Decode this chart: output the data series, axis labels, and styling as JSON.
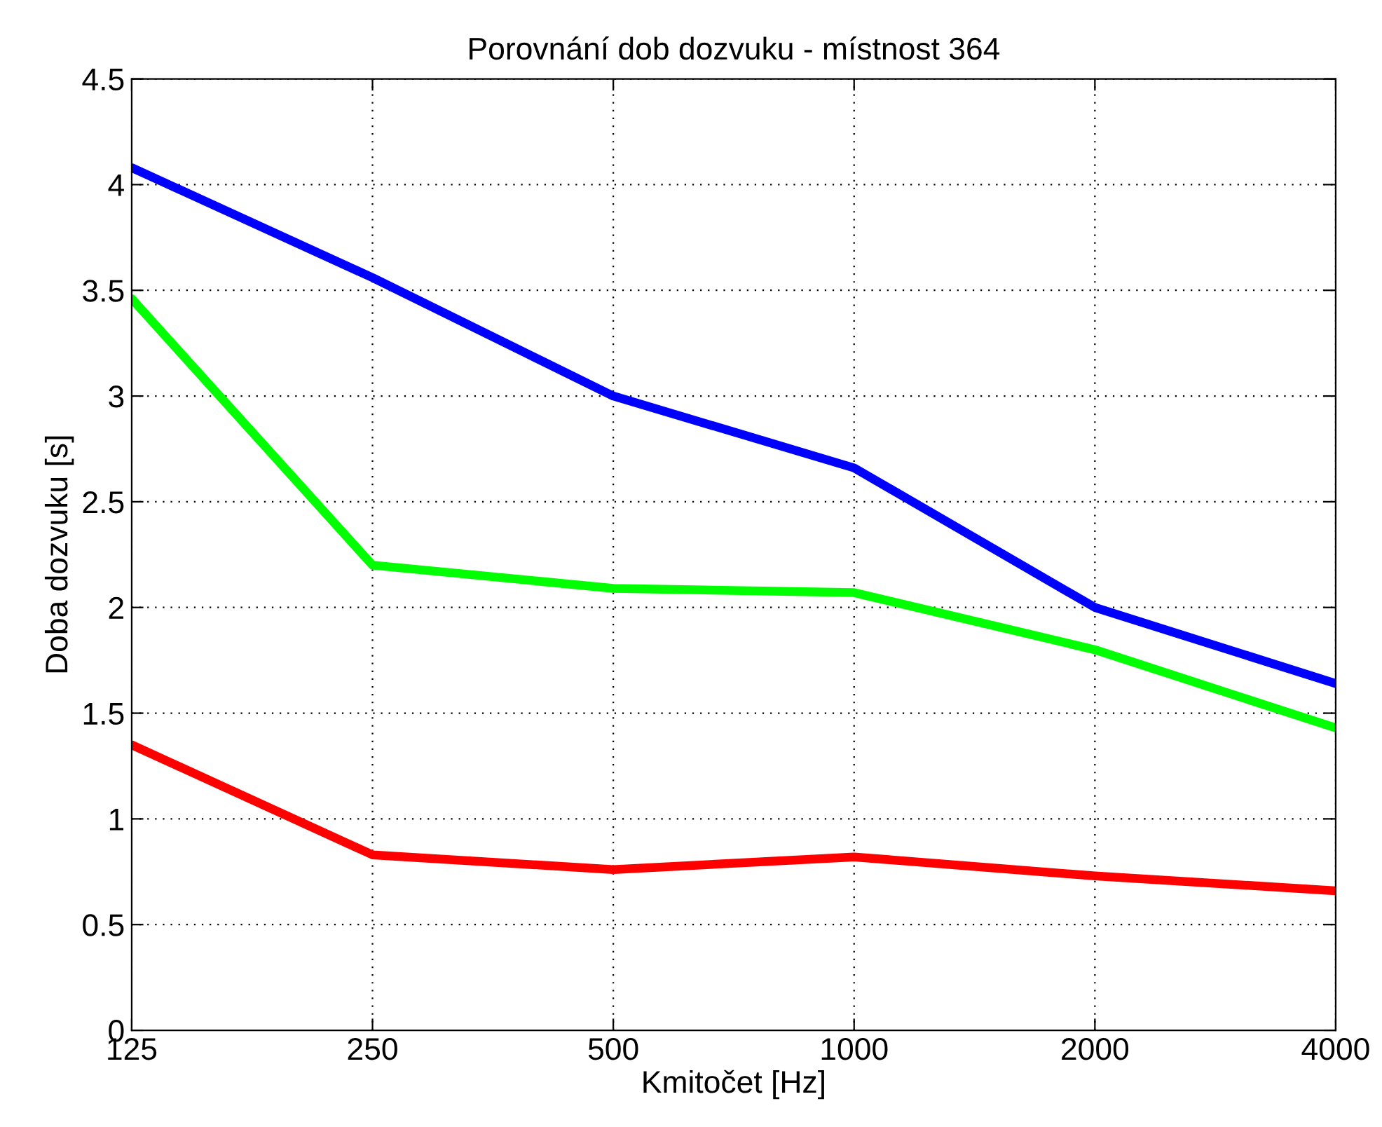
{
  "chart_data": {
    "type": "line",
    "title": "Porovnání dob dozvuku - místnost 364",
    "xlabel": "Kmitočet [Hz]",
    "ylabel": "Doba dozvuku [s]",
    "x": [
      125,
      250,
      500,
      1000,
      2000,
      4000
    ],
    "series": [
      {
        "color": "#0000ff",
        "values": [
          4.08,
          3.56,
          3.0,
          2.66,
          2.0,
          1.64
        ]
      },
      {
        "color": "#00ff00",
        "values": [
          3.46,
          2.2,
          2.09,
          2.07,
          1.8,
          1.43
        ]
      },
      {
        "color": "#ff0000",
        "values": [
          1.35,
          0.83,
          0.76,
          0.82,
          0.73,
          0.66
        ]
      }
    ],
    "log": "x",
    "xlim": [
      125,
      4000
    ],
    "xticks": [
      125,
      250,
      500,
      1000,
      2000,
      4000
    ],
    "ylim": [
      0,
      4.5
    ],
    "yticks": [
      0,
      0.5,
      1,
      1.5,
      2,
      2.5,
      3,
      3.5,
      4,
      4.5
    ],
    "grid": true,
    "line_style": "solid",
    "legend": false
  }
}
